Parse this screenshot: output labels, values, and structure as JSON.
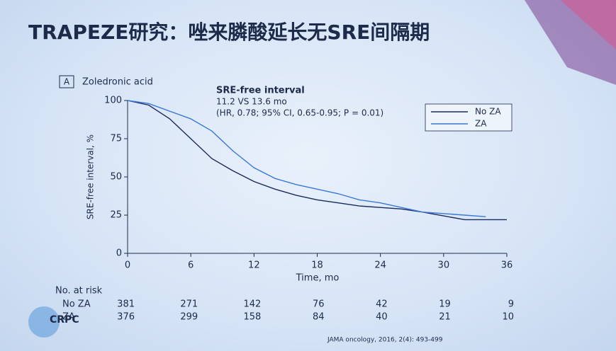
{
  "title": "TRAPEZE研究：唑来膦酸延长无SRE间隔期",
  "citation": "JAMA oncology, 2016, 2(4): 493-499",
  "logo": "CRPC",
  "chart_data": {
    "type": "line",
    "panel": "A",
    "title": "Zoledronic acid",
    "annotations": [
      "SRE-free interval",
      "11.2 VS 13.6 mo",
      "(HR, 0.78; 95% CI, 0.65-0.95; P = 0.01)"
    ],
    "xlabel": "Time, mo",
    "ylabel": "SRE-free interval, %",
    "x": [
      0,
      2,
      4,
      6,
      8,
      10,
      12,
      14,
      16,
      18,
      20,
      22,
      24,
      26,
      28,
      30,
      32,
      34,
      36
    ],
    "series": [
      {
        "name": "No ZA",
        "color": "#1b2a5e",
        "values": [
          100,
          97,
          88,
          75,
          62,
          54,
          47,
          42,
          38,
          35,
          33,
          31,
          30,
          29,
          27,
          24.5,
          22,
          22,
          22
        ]
      },
      {
        "name": "ZA",
        "color": "#3a78d8",
        "values": [
          100,
          98,
          93,
          88,
          80,
          67,
          56,
          49,
          45,
          42,
          39,
          35,
          33,
          30,
          27,
          26,
          25,
          24,
          null
        ]
      }
    ],
    "xlim": [
      0,
      36
    ],
    "xticks": [
      0,
      6,
      12,
      18,
      24,
      30,
      36
    ],
    "ylim": [
      0,
      100
    ],
    "yticks": [
      0,
      25,
      50,
      75,
      100
    ],
    "risk_table": {
      "title": "No. at risk",
      "rows": [
        {
          "name": "No ZA",
          "values": [
            381,
            271,
            142,
            76,
            42,
            19,
            9
          ]
        },
        {
          "name": "ZA",
          "values": [
            376,
            299,
            158,
            84,
            40,
            21,
            10
          ]
        }
      ]
    }
  }
}
